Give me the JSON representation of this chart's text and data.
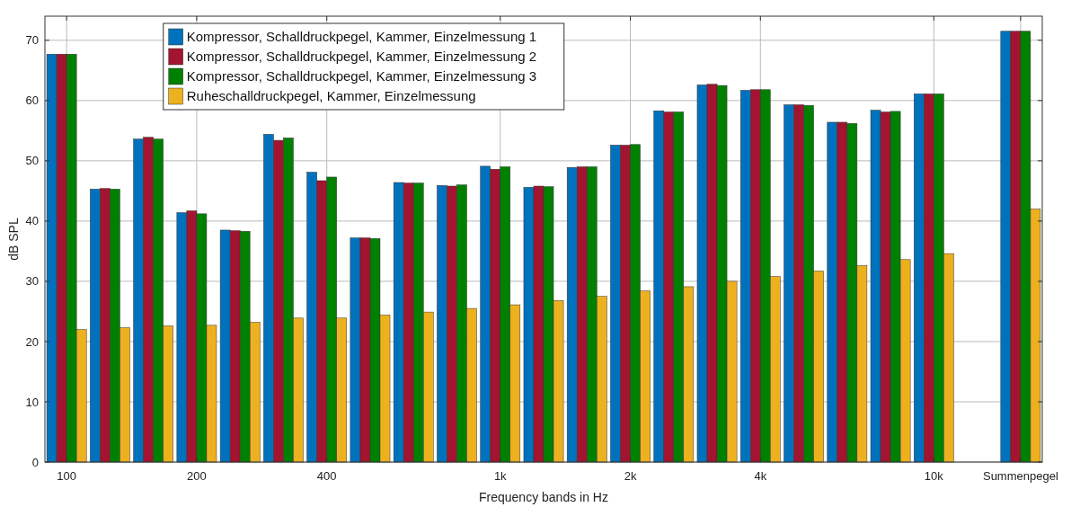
{
  "chart_data": {
    "type": "bar",
    "xlabel": "Frequency bands in Hz",
    "ylabel": "dB SPL",
    "categories": [
      "100",
      null,
      null,
      "200",
      null,
      null,
      "400",
      null,
      null,
      null,
      "1k",
      null,
      null,
      "2k",
      null,
      null,
      "4k",
      null,
      null,
      null,
      "10k",
      null,
      "Summenpegel"
    ],
    "series": [
      {
        "name": "Kompressor, Schalldruckpegel, Kammer, Einzelmessung 1",
        "color": "#0072bd",
        "values": [
          67.7,
          45.3,
          53.6,
          41.4,
          38.5,
          54.4,
          48.1,
          37.2,
          46.4,
          45.9,
          49.1,
          45.6,
          48.9,
          52.6,
          58.3,
          62.6,
          61.7,
          59.3,
          56.4,
          58.4,
          61.1,
          null,
          71.5
        ]
      },
      {
        "name": "Kompressor, Schalldruckpegel, Kammer, Einzelmessung 2",
        "color": "#a2142f",
        "values": [
          67.7,
          45.4,
          53.9,
          41.7,
          38.4,
          53.4,
          46.7,
          37.2,
          46.3,
          45.8,
          48.6,
          45.8,
          49.0,
          52.6,
          58.1,
          62.7,
          61.8,
          59.3,
          56.4,
          58.1,
          61.1,
          null,
          71.5
        ]
      },
      {
        "name": "Kompressor, Schalldruckpegel, Kammer, Einzelmessung 3",
        "color": "#008000",
        "values": [
          67.7,
          45.3,
          53.6,
          41.2,
          38.3,
          53.8,
          47.3,
          37.1,
          46.3,
          46.0,
          49.0,
          45.7,
          49.0,
          52.7,
          58.1,
          62.5,
          61.8,
          59.2,
          56.2,
          58.2,
          61.1,
          null,
          71.5
        ]
      },
      {
        "name": "Ruheschalldruckpegel, Kammer, Einzelmessung",
        "color": "#edb120",
        "values": [
          22.0,
          22.3,
          22.6,
          22.7,
          23.2,
          23.9,
          23.9,
          24.4,
          24.9,
          25.5,
          26.1,
          26.8,
          27.5,
          28.4,
          29.1,
          30.0,
          30.8,
          31.7,
          32.6,
          33.6,
          34.6,
          null,
          42.0
        ]
      }
    ],
    "ylim": [
      0,
      74
    ],
    "yticks": [
      0,
      10,
      20,
      30,
      40,
      50,
      60,
      70
    ],
    "grid": true,
    "legend": "top left"
  }
}
